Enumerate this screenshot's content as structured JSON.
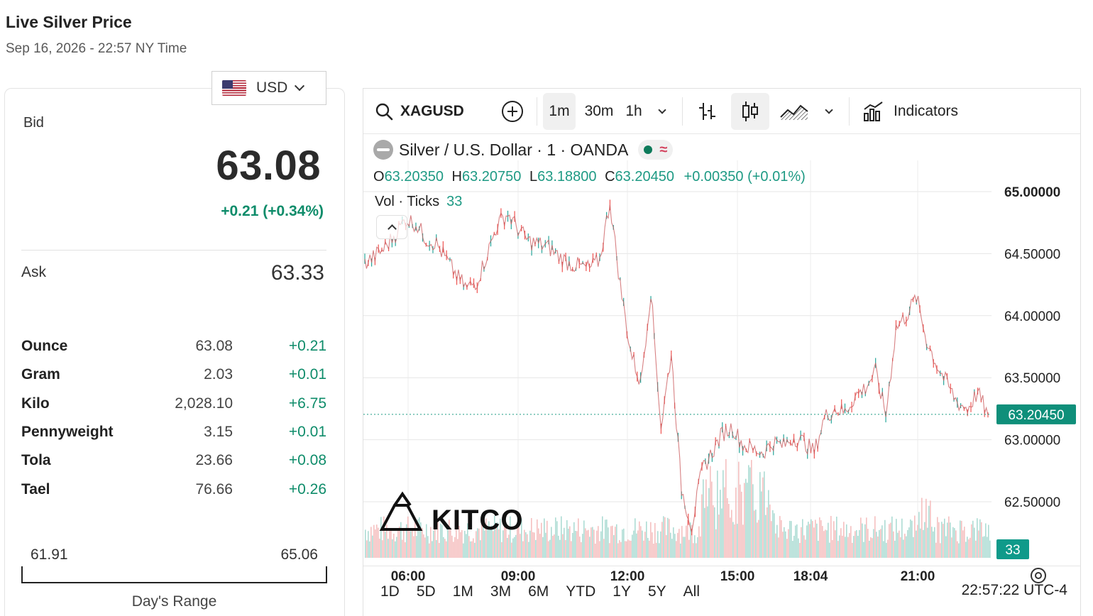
{
  "header": {
    "title": "Live Silver Price",
    "timestamp": "Sep 16, 2026 - 22:57 NY Time"
  },
  "currency": {
    "selected": "USD",
    "flag_icon": "us-flag-icon"
  },
  "quote": {
    "bid_label": "Bid",
    "bid": "63.08",
    "bid_change": "+0.21 (+0.34%)",
    "ask_label": "Ask",
    "ask": "63.33"
  },
  "units": [
    {
      "name": "Ounce",
      "price": "63.08",
      "change": "+0.21"
    },
    {
      "name": "Gram",
      "price": "2.03",
      "change": "+0.01"
    },
    {
      "name": "Kilo",
      "price": "2,028.10",
      "change": "+6.75"
    },
    {
      "name": "Pennyweight",
      "price": "3.15",
      "change": "+0.01"
    },
    {
      "name": "Tola",
      "price": "23.66",
      "change": "+0.08"
    },
    {
      "name": "Tael",
      "price": "76.66",
      "change": "+0.26"
    }
  ],
  "day_range": {
    "low": "61.91",
    "high": "65.06",
    "label": "Day's Range"
  },
  "toolbar": {
    "symbol": "XAGUSD",
    "intervals": [
      "1m",
      "30m",
      "1h"
    ],
    "active_interval": "1m",
    "indicators_label": "Indicators"
  },
  "legend": {
    "title": "Silver / U.S. Dollar · 1 · OANDA",
    "o_label": "O",
    "o": "63.20350",
    "h_label": "H",
    "h": "63.20750",
    "l_label": "L",
    "l": "63.18800",
    "c_label": "C",
    "c": "63.20450",
    "change": "+0.00350 (+0.01%)",
    "vol_label": "Vol · Ticks",
    "vol": "33"
  },
  "watermark": "KITCO",
  "chart_data": {
    "type": "line",
    "title": "",
    "xlabel": "",
    "ylabel": "",
    "ylim": [
      62.1,
      65.1
    ],
    "y_ticks": [
      "65.00000",
      "64.50000",
      "64.00000",
      "63.50000",
      "63.00000",
      "62.50000"
    ],
    "x_ticks": [
      "06:00",
      "09:00",
      "12:00",
      "15:00",
      "18:04",
      "21:00"
    ],
    "last_price_label": "63.20450",
    "last_price": 63.2045,
    "volume_label": "33",
    "grid": true,
    "series": [
      {
        "values": [
          64.42,
          64.48,
          64.55,
          64.66,
          64.78,
          64.74,
          64.62,
          64.58,
          64.45,
          64.32,
          64.22,
          64.28,
          64.5,
          64.74,
          64.82,
          64.7,
          64.6,
          64.58,
          64.55,
          64.48,
          64.42,
          64.4,
          64.38,
          64.45,
          64.92,
          64.25,
          63.72,
          63.45,
          64.2,
          63.1,
          63.7,
          62.6,
          62.3,
          62.75,
          62.9,
          63.05,
          63.1,
          62.96,
          62.92,
          62.9,
          62.98,
          62.95,
          63.02,
          62.98,
          62.9,
          63.18,
          63.25,
          63.22,
          63.35,
          63.42,
          63.55,
          63.2,
          63.9,
          64.0,
          64.15,
          63.8,
          63.6,
          63.45,
          63.3,
          63.25,
          63.38,
          63.2
        ]
      }
    ]
  },
  "time_ranges": [
    "1D",
    "5D",
    "1M",
    "3M",
    "6M",
    "YTD",
    "1Y",
    "5Y",
    "All"
  ],
  "clock": "22:57:22 UTC-4"
}
